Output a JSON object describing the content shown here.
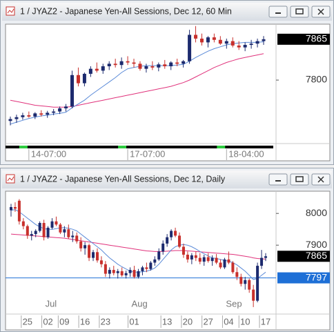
{
  "chart_data": [
    {
      "type": "candlestick",
      "title": "1 / JYAZ2 - Japanese Yen-All Sessions, Dec 12, 60 Min",
      "ylim": [
        7699,
        7889
      ],
      "yticks": [
        7800
      ],
      "up_color": "#1c2a6e",
      "down_color": "#c8302c",
      "categories": [
        null,
        null,
        null,
        "14-07:00",
        null,
        null,
        null,
        null,
        null,
        null,
        null,
        null,
        null,
        null,
        null,
        null,
        null,
        null,
        null,
        "17-07:00",
        null,
        null,
        null,
        null,
        null,
        null,
        null,
        null,
        null,
        null,
        null,
        null,
        null,
        null,
        null,
        "18-04:00",
        null,
        null,
        null,
        null,
        null,
        null
      ],
      "candles": [
        [
          7735,
          7742,
          7728,
          7738
        ],
        [
          7738,
          7745,
          7732,
          7741
        ],
        [
          7741,
          7748,
          7737,
          7744
        ],
        [
          7744,
          7750,
          7740,
          7742
        ],
        [
          7742,
          7749,
          7738,
          7747
        ],
        [
          7747,
          7752,
          7742,
          7745
        ],
        [
          7745,
          7751,
          7740,
          7748
        ],
        [
          7748,
          7754,
          7744,
          7750
        ],
        [
          7750,
          7758,
          7746,
          7755
        ],
        [
          7755,
          7762,
          7750,
          7758
        ],
        [
          7758,
          7815,
          7755,
          7808
        ],
        [
          7808,
          7820,
          7790,
          7795
        ],
        [
          7795,
          7812,
          7790,
          7810
        ],
        [
          7810,
          7822,
          7805,
          7818
        ],
        [
          7818,
          7828,
          7812,
          7815
        ],
        [
          7815,
          7826,
          7810,
          7822
        ],
        [
          7822,
          7830,
          7816,
          7826
        ],
        [
          7826,
          7834,
          7820,
          7824
        ],
        [
          7824,
          7836,
          7818,
          7830
        ],
        [
          7830,
          7838,
          7824,
          7828
        ],
        [
          7828,
          7834,
          7820,
          7826
        ],
        [
          7826,
          7830,
          7815,
          7818
        ],
        [
          7818,
          7826,
          7812,
          7822
        ],
        [
          7822,
          7830,
          7816,
          7820
        ],
        [
          7820,
          7828,
          7814,
          7825
        ],
        [
          7825,
          7832,
          7818,
          7822
        ],
        [
          7822,
          7830,
          7816,
          7828
        ],
        [
          7828,
          7834,
          7822,
          7826
        ],
        [
          7826,
          7832,
          7820,
          7830
        ],
        [
          7830,
          7880,
          7826,
          7872
        ],
        [
          7872,
          7886,
          7860,
          7866
        ],
        [
          7866,
          7874,
          7855,
          7860
        ],
        [
          7860,
          7870,
          7852,
          7868
        ],
        [
          7868,
          7874,
          7860,
          7864
        ],
        [
          7864,
          7870,
          7856,
          7858
        ],
        [
          7858,
          7866,
          7850,
          7862
        ],
        [
          7862,
          7868,
          7852,
          7855
        ],
        [
          7855,
          7862,
          7848,
          7852
        ],
        [
          7852,
          7860,
          7846,
          7856
        ],
        [
          7856,
          7864,
          7850,
          7858
        ],
        [
          7858,
          7866,
          7852,
          7862
        ],
        [
          7862,
          7870,
          7856,
          7865
        ]
      ],
      "lines": [
        {
          "color": "#e0307a",
          "values": [
            7768,
            7766,
            7764,
            7762,
            7760,
            7759,
            7758,
            7757,
            7757,
            7757,
            7758,
            7760,
            7762,
            7764,
            7766,
            7768,
            7770,
            7772,
            7774,
            7776,
            7778,
            7780,
            7782,
            7784,
            7786,
            7788,
            7790,
            7793,
            7796,
            7800,
            7805,
            7810,
            7815,
            7820,
            7824,
            7828,
            7831,
            7834,
            7836,
            7838,
            7840,
            7842
          ]
        },
        {
          "color": "#5a8ad8",
          "values": [
            7730,
            7733,
            7736,
            7739,
            7741,
            7743,
            7744,
            7746,
            7747,
            7749,
            7756,
            7762,
            7768,
            7776,
            7783,
            7790,
            7797,
            7804,
            7812,
            7818,
            7820,
            7822,
            7823,
            7823,
            7823,
            7823,
            7823,
            7824,
            7825,
            7830,
            7836,
            7841,
            7846,
            7850,
            7853,
            7856,
            7858,
            7859,
            7860,
            7860,
            7860,
            7861
          ]
        }
      ],
      "last_price": 7865
    },
    {
      "type": "candlestick",
      "title": "1 / JYAZ2 - Japanese Yen-All Sessions, Dec 12, Daily",
      "ylim": [
        7683,
        8070
      ],
      "yticks": [
        8000,
        7900
      ],
      "up_color": "#1c2a6e",
      "down_color": "#c8302c",
      "categories": [
        null,
        null,
        null,
        null,
        "25",
        null,
        null,
        null,
        null,
        "02",
        null,
        null,
        null,
        "09",
        null,
        null,
        null,
        null,
        "16",
        null,
        null,
        null,
        null,
        "23",
        null,
        null,
        null,
        null,
        null,
        null,
        "01",
        null,
        null,
        null,
        null,
        null,
        null,
        null,
        "13",
        null,
        null,
        null,
        null,
        "20",
        null,
        null,
        null,
        null,
        "27",
        null,
        null,
        null,
        null,
        "04",
        null,
        null,
        null,
        "10",
        null,
        null,
        null,
        null,
        "17"
      ],
      "months": [
        null,
        null,
        null,
        null,
        null,
        null,
        null,
        null,
        null,
        "Jul",
        null,
        null,
        null,
        null,
        null,
        null,
        null,
        null,
        null,
        null,
        null,
        null,
        null,
        null,
        null,
        null,
        null,
        null,
        null,
        null,
        "Aug",
        null,
        null,
        null,
        null,
        null,
        null,
        null,
        null,
        null,
        null,
        null,
        null,
        null,
        null,
        null,
        null,
        null,
        null,
        null,
        null,
        null,
        null,
        "Sep",
        null,
        null,
        null,
        null,
        null,
        null,
        null,
        null,
        null
      ],
      "candles": [
        [
          8010,
          8030,
          7990,
          8020
        ],
        [
          8020,
          8035,
          8005,
          8015
        ],
        [
          8040,
          8045,
          7965,
          7975
        ],
        [
          7975,
          7985,
          7950,
          7960
        ],
        [
          7960,
          7965,
          7920,
          7930
        ],
        [
          7930,
          7945,
          7915,
          7935
        ],
        [
          7935,
          7950,
          7925,
          7945
        ],
        [
          7945,
          7975,
          7940,
          7970
        ],
        [
          7970,
          7980,
          7915,
          7925
        ],
        [
          7925,
          7960,
          7920,
          7955
        ],
        [
          7955,
          7985,
          7950,
          7975
        ],
        [
          7975,
          7990,
          7960,
          7965
        ],
        [
          7965,
          7970,
          7935,
          7940
        ],
        [
          7940,
          7960,
          7925,
          7950
        ],
        [
          7950,
          7965,
          7920,
          7925
        ],
        [
          7925,
          7945,
          7910,
          7930
        ],
        [
          7930,
          7940,
          7905,
          7912
        ],
        [
          7912,
          7925,
          7880,
          7890
        ],
        [
          7890,
          7910,
          7870,
          7900
        ],
        [
          7900,
          7905,
          7850,
          7860
        ],
        [
          7860,
          7885,
          7850,
          7878
        ],
        [
          7878,
          7890,
          7845,
          7852
        ],
        [
          7852,
          7865,
          7830,
          7840
        ],
        [
          7840,
          7850,
          7800,
          7810
        ],
        [
          7810,
          7830,
          7795,
          7822
        ],
        [
          7822,
          7835,
          7805,
          7812
        ],
        [
          7812,
          7825,
          7795,
          7818
        ],
        [
          7818,
          7830,
          7800,
          7805
        ],
        [
          7805,
          7820,
          7795,
          7812
        ],
        [
          7812,
          7830,
          7800,
          7822
        ],
        [
          7822,
          7835,
          7795,
          7800
        ],
        [
          7800,
          7825,
          7795,
          7818
        ],
        [
          7818,
          7835,
          7805,
          7830
        ],
        [
          7830,
          7845,
          7815,
          7825
        ],
        [
          7825,
          7850,
          7820,
          7845
        ],
        [
          7845,
          7865,
          7835,
          7855
        ],
        [
          7855,
          7890,
          7850,
          7880
        ],
        [
          7880,
          7915,
          7870,
          7905
        ],
        [
          7905,
          7935,
          7895,
          7925
        ],
        [
          7925,
          7950,
          7915,
          7945
        ],
        [
          7945,
          7955,
          7925,
          7930
        ],
        [
          7930,
          7940,
          7890,
          7895
        ],
        [
          7895,
          7905,
          7860,
          7870
        ],
        [
          7870,
          7880,
          7845,
          7855
        ],
        [
          7855,
          7875,
          7840,
          7868
        ],
        [
          7868,
          7880,
          7850,
          7860
        ],
        [
          7860,
          7875,
          7840,
          7848
        ],
        [
          7848,
          7870,
          7835,
          7862
        ],
        [
          7862,
          7875,
          7845,
          7850
        ],
        [
          7850,
          7868,
          7835,
          7860
        ],
        [
          7860,
          7872,
          7840,
          7845
        ],
        [
          7845,
          7855,
          7825,
          7830
        ],
        [
          7830,
          7860,
          7825,
          7855
        ],
        [
          7855,
          7880,
          7840,
          7845
        ],
        [
          7845,
          7850,
          7810,
          7815
        ],
        [
          7815,
          7830,
          7790,
          7800
        ],
        [
          7800,
          7810,
          7770,
          7778
        ],
        [
          7778,
          7800,
          7760,
          7790
        ],
        [
          7790,
          7795,
          7750,
          7760
        ],
        [
          7760,
          7775,
          7705,
          7725
        ],
        [
          7725,
          7845,
          7720,
          7835
        ],
        [
          7835,
          7885,
          7825,
          7860
        ],
        [
          7860,
          7875,
          7850,
          7865
        ]
      ],
      "lines": [
        {
          "color": "#e0307a",
          "values": [
            7935,
            7934,
            7933,
            7932,
            7931,
            7930,
            7929,
            7928,
            7927,
            7926,
            7925,
            7924,
            7923,
            7922,
            7920,
            7918,
            7916,
            7914,
            7912,
            7910,
            7908,
            7906,
            7904,
            7902,
            7900,
            7898,
            7896,
            7894,
            7892,
            7890,
            7888,
            7886,
            7884,
            7882,
            7881,
            7880,
            7880,
            7880,
            7881,
            7882,
            7883,
            7883,
            7883,
            7882,
            7881,
            7880,
            7879,
            7878,
            7877,
            7876,
            7875,
            7874,
            7873,
            7872,
            7871,
            7869,
            7867,
            7865,
            7863,
            7860,
            7858,
            7857,
            7856
          ]
        },
        {
          "color": "#5a8ad8",
          "values": [
            8010,
            8012,
            8005,
            7995,
            7985,
            7975,
            7965,
            7958,
            7952,
            7950,
            7950,
            7952,
            7955,
            7955,
            7953,
            7950,
            7945,
            7935,
            7925,
            7915,
            7905,
            7895,
            7885,
            7872,
            7860,
            7850,
            7840,
            7832,
            7825,
            7818,
            7815,
            7815,
            7816,
            7818,
            7822,
            7828,
            7840,
            7855,
            7870,
            7885,
            7895,
            7900,
            7902,
            7900,
            7895,
            7888,
            7880,
            7873,
            7866,
            7860,
            7858,
            7855,
            7852,
            7850,
            7845,
            7838,
            7828,
            7818,
            7805,
            7792,
            7795,
            7805,
            7815
          ]
        }
      ],
      "last_price": 7865,
      "hline": {
        "value": 7797,
        "color": "#1e6fd6"
      }
    }
  ]
}
